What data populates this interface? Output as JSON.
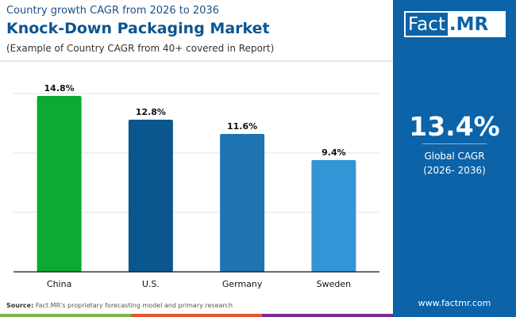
{
  "header": {
    "subtitle": "Country growth CAGR from 2026 to 2036",
    "title": "Knock-Down Packaging Market",
    "note": "(Example of Country CAGR from 40+ covered in Report)"
  },
  "logo": {
    "text": "Fact.MR",
    "part1": "Fact",
    "part2": ".MR"
  },
  "summary": {
    "value": "13.4%",
    "label": "Global CAGR",
    "period": "(2026- 2036)"
  },
  "footer": {
    "source_label": "Source:",
    "source_text": "Fact.MR's proprietary forecasting model and primary research",
    "website": "www.factmr.com"
  },
  "colors": {
    "china": "#0caa32",
    "us": "#0c568f",
    "germany": "#1d74b0",
    "sweden": "#3394d6",
    "panel": "#0c63a8",
    "stripes": [
      "#7ab648",
      "#e4572e",
      "#7b2d8e"
    ]
  },
  "chart_data": {
    "type": "bar",
    "categories": [
      "China",
      "U.S.",
      "Germany",
      "Sweden"
    ],
    "values": [
      14.8,
      12.8,
      11.6,
      9.4
    ],
    "labels": [
      "14.8%",
      "12.8%",
      "11.6%",
      "9.4%"
    ],
    "ylim": [
      0,
      15
    ],
    "grid": true,
    "xlabel": "",
    "ylabel": ""
  }
}
